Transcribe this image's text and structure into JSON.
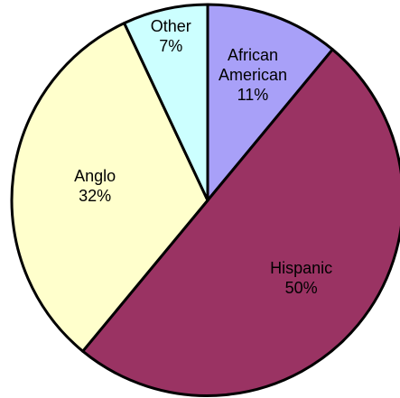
{
  "chart_data": {
    "type": "pie",
    "title": "",
    "start_angle_deg": 0,
    "direction": "clockwise",
    "slices": [
      {
        "name": "African American",
        "value": 11,
        "label_lines": [
          "African",
          "American",
          "11%"
        ],
        "color": "#A8A0F8"
      },
      {
        "name": "Hispanic",
        "value": 50,
        "label_lines": [
          "Hispanic",
          "50%"
        ],
        "color": "#9A3363"
      },
      {
        "name": "Anglo",
        "value": 32,
        "label_lines": [
          "Anglo",
          "32%"
        ],
        "color": "#FFFFCC"
      },
      {
        "name": "Other",
        "value": 7,
        "label_lines": [
          "Other",
          "7%"
        ],
        "color": "#CCFFFF"
      }
    ],
    "legend": "none",
    "data_labels": "inside"
  }
}
